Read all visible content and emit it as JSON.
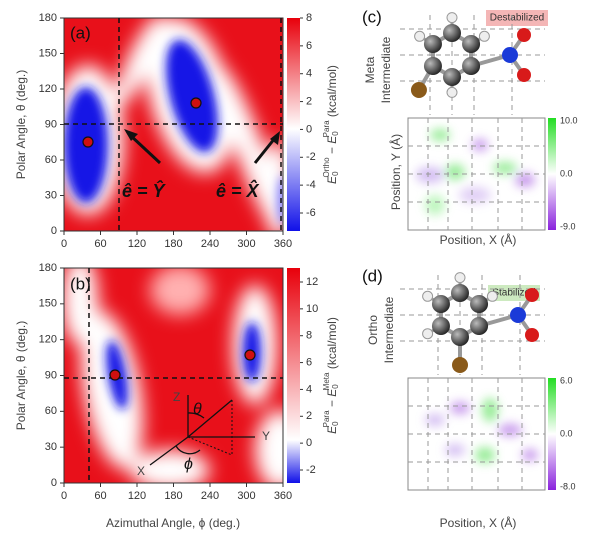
{
  "panels": {
    "a": {
      "label": "(a)",
      "y_axis_label": "Polar Angle, θ (deg.)",
      "y_ticks": [
        "0",
        "30",
        "60",
        "90",
        "120",
        "150",
        "180"
      ],
      "x_ticks": [
        "0",
        "60",
        "120",
        "180",
        "240",
        "300",
        "360"
      ],
      "colorbar_ticks": [
        "8",
        "6",
        "4",
        "2",
        "0",
        "-2",
        "-4",
        "-6"
      ],
      "colorbar_label": {
        "e1": "E",
        "sub1": "0",
        "sup1": "Ortho",
        "minus": " − E",
        "sub2": "0",
        "sup2": "Para",
        "unit": " (kcal/mol)"
      },
      "annotations": [
        "ê = Ŷ",
        "ê = X̂"
      ]
    },
    "b": {
      "label": "(b)",
      "y_axis_label": "Polar Angle, θ (deg.)",
      "y_ticks": [
        "0",
        "30",
        "60",
        "90",
        "120",
        "150",
        "180"
      ],
      "x_ticks": [
        "0",
        "60",
        "120",
        "180",
        "240",
        "300",
        "360"
      ],
      "x_axis_label": "Azimuthal Angle, ϕ (deg.)",
      "colorbar_ticks": [
        "12",
        "10",
        "8",
        "6",
        "4",
        "2",
        "0",
        "-2"
      ],
      "colorbar_label": {
        "e1": "E",
        "sub1": "0",
        "sup1": "Para",
        "minus": " − E",
        "sub2": "0",
        "sup2": "Meta",
        "unit": " (kcal/mol)"
      },
      "inset": {
        "z": "Z",
        "y": "Y",
        "x": "X",
        "theta": "θ",
        "phi": "ϕ"
      }
    },
    "c": {
      "label": "(c)",
      "tag": "Destabilized",
      "name1": "Meta",
      "name2": "Intermediate",
      "y_axis_label": "Position, Y (Å)",
      "x_axis_label": "Position, X (Å)",
      "colorbar_ticks": [
        "10.0",
        "0.0",
        "-9.0"
      ]
    },
    "d": {
      "label": "(d)",
      "tag": "Stabilized",
      "name1": "Ortho",
      "name2": "Intermediate",
      "x_axis_label": "Position, X (Å)",
      "colorbar_ticks": [
        "6.0",
        "0.0",
        "-8.0"
      ]
    }
  }
}
